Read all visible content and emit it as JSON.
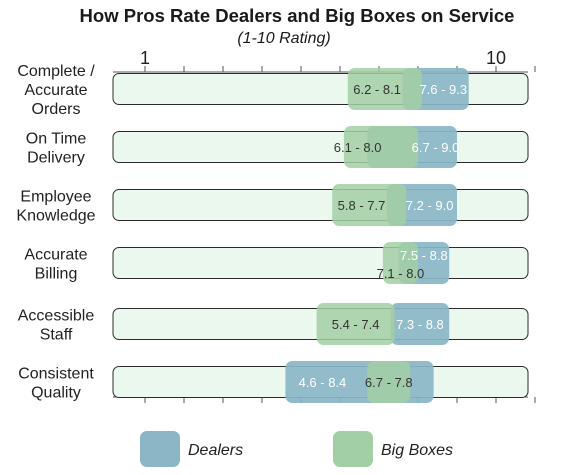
{
  "chart_data": {
    "type": "range-bar",
    "title": "How Pros Rate Dealers and Big Boxes on Service",
    "subtitle": "(1-10 Rating)",
    "xlim": [
      1,
      11
    ],
    "tick_labels": [
      "1",
      "10"
    ],
    "categories": [
      [
        "Complete /",
        "Accurate",
        "Orders"
      ],
      [
        "On Time",
        "Delivery"
      ],
      [
        "Employee",
        "Knowledge"
      ],
      [
        "Accurate",
        "Billing"
      ],
      [
        "Accessible",
        "Staff"
      ],
      [
        "Consistent",
        "Quality"
      ]
    ],
    "series": [
      {
        "name": "Dealers",
        "color": "#8ab6c6",
        "ranges": [
          [
            7.6,
            9.3
          ],
          [
            6.7,
            9.0
          ],
          [
            7.2,
            9.0
          ],
          [
            7.5,
            8.8
          ],
          [
            7.3,
            8.8
          ],
          [
            4.6,
            8.4
          ]
        ],
        "labels": [
          "7.6 - 9.3",
          "6.7 - 9.0",
          "7.2 - 9.0",
          "7.5 - 8.8",
          "7.3 - 8.8",
          "4.6 - 8.4"
        ]
      },
      {
        "name": "Big Boxes",
        "color": "#a3cfa5",
        "ranges": [
          [
            6.2,
            8.1
          ],
          [
            6.1,
            8.0
          ],
          [
            5.8,
            7.7
          ],
          [
            7.1,
            8.0
          ],
          [
            5.4,
            7.4
          ],
          [
            6.7,
            7.8
          ]
        ],
        "labels": [
          "6.2 - 8.1",
          "6.1 - 8.0",
          "5.8 - 7.7",
          "7.1 - 8.0",
          "5.4 - 7.4",
          "6.7 - 7.8"
        ]
      }
    ],
    "track_color": "#ebf8ee",
    "legend_position": "bottom"
  }
}
